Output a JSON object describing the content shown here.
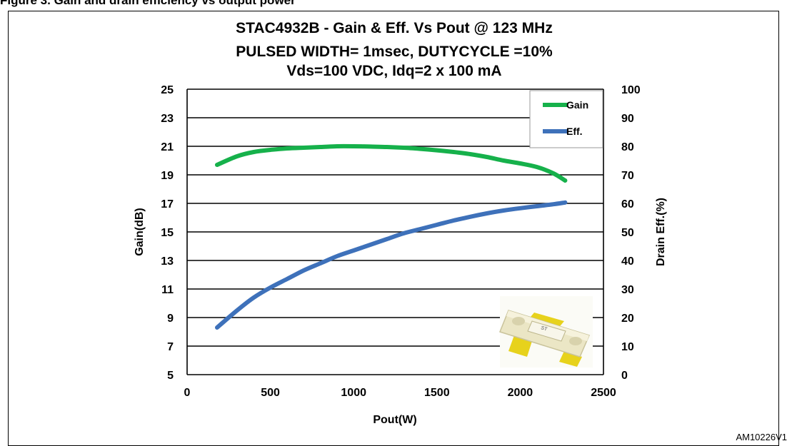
{
  "caption": "Figure 3. Gain and drain efficiency vs output power",
  "ref_id": "AM10226V1",
  "chart_data": {
    "type": "line",
    "title": [
      "STAC4932B - Gain & Eff. Vs Pout @ 123 MHz",
      "PULSED WIDTH= 1msec, DUTYCYCLE =10%",
      "Vds=100 VDC, Idq=2 x 100 mA"
    ],
    "xlabel": "Pout(W)",
    "ylabel": "Gain(dB)",
    "y2label": "Drain Eff.(%)",
    "xlim": [
      0,
      2500
    ],
    "ylim": [
      5,
      25
    ],
    "y2lim": [
      0,
      100
    ],
    "xticks": [
      "0",
      "500",
      "1000",
      "1500",
      "2000",
      "2500"
    ],
    "yticks": [
      "5",
      "7",
      "9",
      "11",
      "13",
      "15",
      "17",
      "19",
      "21",
      "23",
      "25"
    ],
    "y2ticks": [
      "0",
      "10",
      "20",
      "30",
      "40",
      "50",
      "60",
      "70",
      "80",
      "90",
      "100"
    ],
    "grid": "horizontal",
    "legend": "top-right",
    "series": [
      {
        "name": "Gain",
        "axis": "left",
        "color": "#16b14b",
        "x": [
          180,
          300,
          400,
          500,
          600,
          700,
          800,
          900,
          1000,
          1100,
          1200,
          1300,
          1400,
          1500,
          1600,
          1700,
          1800,
          1900,
          2000,
          2100,
          2200,
          2270
        ],
        "y": [
          19.7,
          20.3,
          20.6,
          20.75,
          20.85,
          20.9,
          20.95,
          21.0,
          21.0,
          20.98,
          20.95,
          20.9,
          20.82,
          20.72,
          20.6,
          20.45,
          20.25,
          20.0,
          19.8,
          19.55,
          19.1,
          18.6
        ]
      },
      {
        "name": "Eff.",
        "axis": "right",
        "color": "#3e71ba",
        "x": [
          180,
          300,
          400,
          500,
          600,
          700,
          800,
          900,
          1000,
          1100,
          1200,
          1300,
          1400,
          1500,
          1600,
          1700,
          1800,
          1900,
          2000,
          2100,
          2200,
          2270
        ],
        "y": [
          16.5,
          22.5,
          27,
          30.5,
          33.5,
          36.5,
          39,
          41.5,
          43.5,
          45.5,
          47.5,
          49.5,
          51,
          52.5,
          54,
          55.3,
          56.5,
          57.5,
          58.3,
          59,
          59.7,
          60.3
        ]
      }
    ],
    "annotations": [
      "device-photo"
    ]
  }
}
